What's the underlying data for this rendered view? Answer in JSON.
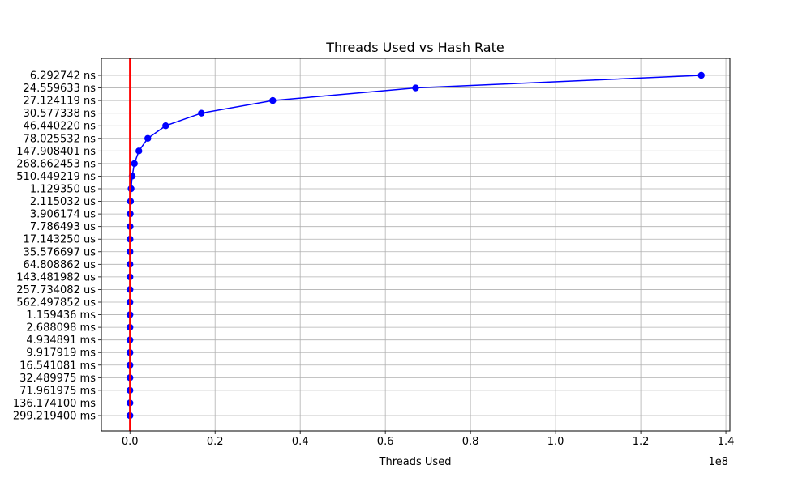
{
  "chart_data": {
    "type": "line",
    "title": "Threads Used vs Hash Rate",
    "xlabel": "Threads Used",
    "ylabel": "",
    "x_offset_text": "1e8",
    "x_ticks": [
      {
        "value": 0.0,
        "label": "0.0"
      },
      {
        "value": 0.2,
        "label": "0.2"
      },
      {
        "value": 0.4,
        "label": "0.4"
      },
      {
        "value": 0.6,
        "label": "0.6"
      },
      {
        "value": 0.8,
        "label": "0.8"
      },
      {
        "value": 1.0,
        "label": "1.0"
      },
      {
        "value": 1.2,
        "label": "1.2"
      },
      {
        "value": 1.4,
        "label": "1.4"
      }
    ],
    "xlim": [
      -0.0671,
      1.4094
    ],
    "grid": true,
    "categories": [
      "299.219400 ms",
      "136.174100 ms",
      "71.961975 ms",
      "32.489975 ms",
      "16.541081 ms",
      "9.917919 ms",
      "4.934891 ms",
      "2.688098 ms",
      "1.159436 ms",
      "562.497852 us",
      "257.734082 us",
      "143.481982 us",
      "64.808862 us",
      "35.576697 us",
      "17.143250 us",
      "7.786493 us",
      "3.906174 us",
      "2.115032 us",
      "1.129350 us",
      "510.449219 ns",
      "268.662453 ns",
      "147.908401 ns",
      "78.025532 ns",
      "46.440220 ns",
      "30.577338 ns",
      "27.124119 ns",
      "24.559633 ns",
      "6.292742 ns"
    ],
    "series": [
      {
        "color": "#0000ff",
        "marker": "circle",
        "x": [
          1,
          2,
          4,
          8,
          16,
          32,
          64,
          128,
          256,
          512,
          1024,
          2048,
          4096,
          8192,
          16384,
          32768,
          65536,
          131072,
          262144,
          524288,
          1048576,
          2097152,
          4194304,
          8388608,
          16777216,
          33554432,
          67108864,
          134217728
        ]
      }
    ],
    "reference_line": {
      "x": 0,
      "color": "#ff0000",
      "orientation": "vertical"
    }
  }
}
